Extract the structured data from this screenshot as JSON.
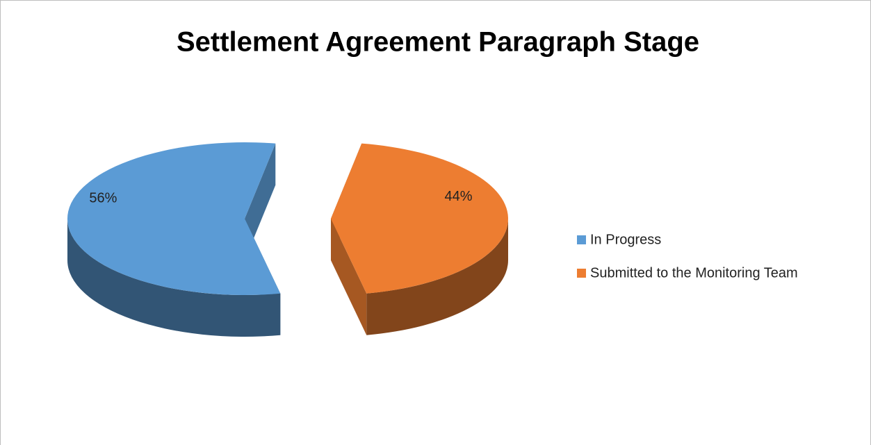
{
  "chart_data": {
    "type": "pie",
    "title": "Settlement Agreement Paragraph Stage",
    "categories": [
      "In Progress",
      "Submitted to the Monitoring Team"
    ],
    "values": [
      56,
      44
    ],
    "value_labels": [
      "56%",
      "44%"
    ],
    "colors": [
      "#5b9bd5",
      "#ed7d31"
    ],
    "legend": "right"
  }
}
